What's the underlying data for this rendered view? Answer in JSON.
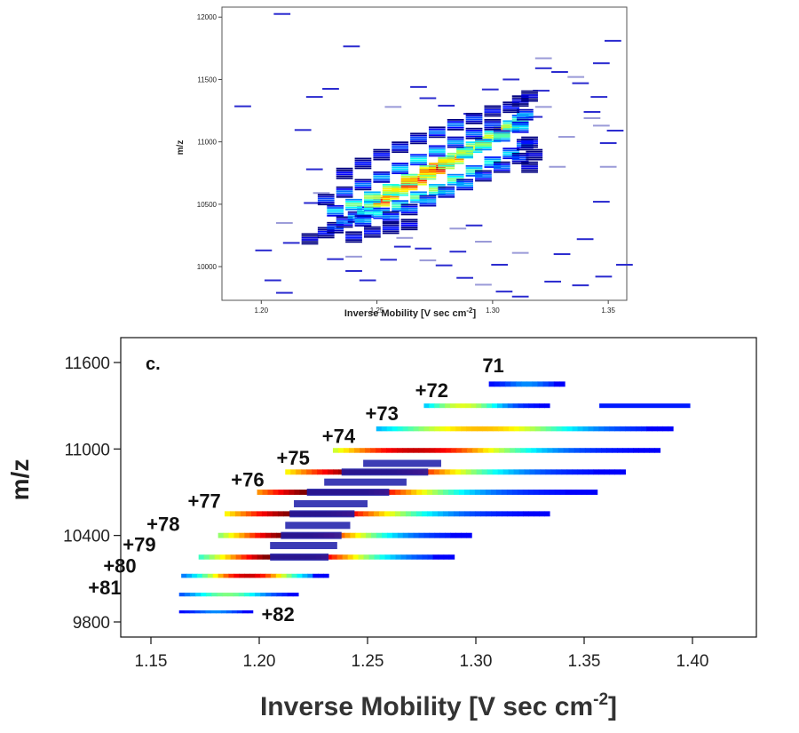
{
  "chart_data": [
    {
      "type": "heatmap",
      "title": "",
      "xlabel": "Inverse Mobility [V sec cm",
      "xlabel_sup": "-2",
      "xlabel_end": "]",
      "ylabel": "m/z",
      "xlim": [
        1.183,
        1.358
      ],
      "ylim": [
        9730,
        12080
      ],
      "xticks": [
        1.2,
        1.25,
        1.3,
        1.35
      ],
      "xtick_labels": [
        "1.20",
        "1.25",
        "1.30",
        "1.35"
      ],
      "yticks": [
        10000,
        10500,
        11000,
        11500,
        12000
      ],
      "ytick_labels": [
        "10000",
        "10500",
        "11000",
        "11500",
        "12000"
      ],
      "bin_width": 0.0072,
      "cells": [
        [
          1.221,
          10225,
          0.15
        ],
        [
          1.228,
          10275,
          0.2
        ],
        [
          1.232,
          10315,
          0.25
        ],
        [
          1.236,
          10360,
          0.3
        ],
        [
          1.241,
          10400,
          0.35
        ],
        [
          1.245,
          10440,
          0.45
        ],
        [
          1.248,
          10490,
          0.55
        ],
        [
          1.252,
          10530,
          0.9
        ],
        [
          1.256,
          10570,
          0.8
        ],
        [
          1.26,
          10615,
          0.7
        ],
        [
          1.264,
          10660,
          0.95
        ],
        [
          1.268,
          10700,
          0.9
        ],
        [
          1.272,
          10745,
          0.8
        ],
        [
          1.276,
          10790,
          1.0
        ],
        [
          1.28,
          10830,
          0.85
        ],
        [
          1.284,
          10870,
          0.8
        ],
        [
          1.288,
          10915,
          0.7
        ],
        [
          1.292,
          10960,
          0.65
        ],
        [
          1.296,
          11000,
          0.8
        ],
        [
          1.3,
          11045,
          0.65
        ],
        [
          1.304,
          11090,
          0.85
        ],
        [
          1.308,
          11130,
          0.6
        ],
        [
          1.312,
          11175,
          0.5
        ],
        [
          1.314,
          11220,
          0.35
        ],
        [
          1.232,
          10450,
          0.4
        ],
        [
          1.24,
          10500,
          0.55
        ],
        [
          1.248,
          10560,
          0.6
        ],
        [
          1.256,
          10620,
          0.7
        ],
        [
          1.264,
          10700,
          0.75
        ],
        [
          1.272,
          10770,
          0.8
        ],
        [
          1.28,
          10850,
          0.7
        ],
        [
          1.288,
          10920,
          0.6
        ],
        [
          1.296,
          10980,
          0.55
        ],
        [
          1.304,
          11050,
          0.5
        ],
        [
          1.312,
          11120,
          0.4
        ],
        [
          1.244,
          10370,
          0.35
        ],
        [
          1.252,
          10430,
          0.45
        ],
        [
          1.26,
          10490,
          0.5
        ],
        [
          1.268,
          10560,
          0.55
        ],
        [
          1.276,
          10620,
          0.6
        ],
        [
          1.284,
          10700,
          0.55
        ],
        [
          1.292,
          10770,
          0.5
        ],
        [
          1.3,
          10840,
          0.45
        ],
        [
          1.308,
          10910,
          0.4
        ],
        [
          1.314,
          10980,
          0.3
        ],
        [
          1.228,
          10540,
          0.25
        ],
        [
          1.236,
          10600,
          0.3
        ],
        [
          1.244,
          10660,
          0.3
        ],
        [
          1.252,
          10720,
          0.35
        ],
        [
          1.26,
          10790,
          0.4
        ],
        [
          1.268,
          10860,
          0.45
        ],
        [
          1.276,
          10930,
          0.4
        ],
        [
          1.284,
          11000,
          0.35
        ],
        [
          1.292,
          11070,
          0.3
        ],
        [
          1.3,
          11140,
          0.25
        ],
        [
          1.256,
          10400,
          0.3
        ],
        [
          1.264,
          10460,
          0.3
        ],
        [
          1.272,
          10530,
          0.35
        ],
        [
          1.28,
          10600,
          0.35
        ],
        [
          1.288,
          10660,
          0.35
        ],
        [
          1.296,
          10730,
          0.3
        ],
        [
          1.304,
          10800,
          0.3
        ],
        [
          1.312,
          10870,
          0.25
        ],
        [
          1.3,
          11250,
          0.2
        ],
        [
          1.308,
          11280,
          0.2
        ],
        [
          1.312,
          11330,
          0.15
        ],
        [
          1.316,
          11370,
          0.15
        ],
        [
          1.292,
          11190,
          0.25
        ],
        [
          1.284,
          11140,
          0.3
        ],
        [
          1.276,
          11080,
          0.3
        ],
        [
          1.268,
          11030,
          0.25
        ],
        [
          1.26,
          10960,
          0.25
        ],
        [
          1.252,
          10900,
          0.2
        ],
        [
          1.244,
          10830,
          0.2
        ],
        [
          1.236,
          10750,
          0.18
        ],
        [
          1.316,
          11000,
          0.2
        ],
        [
          1.318,
          10900,
          0.15
        ],
        [
          1.316,
          10800,
          0.15
        ],
        [
          1.24,
          10240,
          0.2
        ],
        [
          1.248,
          10280,
          0.2
        ],
        [
          1.256,
          10310,
          0.2
        ],
        [
          1.264,
          10340,
          0.18
        ]
      ],
      "sparse": [
        [
          1.192,
          11285
        ],
        [
          1.209,
          12025
        ],
        [
          1.239,
          11765
        ],
        [
          1.223,
          11360
        ],
        [
          1.23,
          11425
        ],
        [
          1.218,
          11095
        ],
        [
          1.201,
          10130
        ],
        [
          1.213,
          10190
        ],
        [
          1.205,
          9890
        ],
        [
          1.21,
          9790
        ],
        [
          1.232,
          10060
        ],
        [
          1.24,
          9965
        ],
        [
          1.246,
          9890
        ],
        [
          1.255,
          10055
        ],
        [
          1.262,
          10230
        ],
        [
          1.27,
          10145
        ],
        [
          1.279,
          10010
        ],
        [
          1.288,
          9910
        ],
        [
          1.296,
          9855
        ],
        [
          1.305,
          9800
        ],
        [
          1.312,
          9760
        ],
        [
          1.326,
          9880
        ],
        [
          1.338,
          9850
        ],
        [
          1.348,
          9920
        ],
        [
          1.357,
          10015
        ],
        [
          1.34,
          10220
        ],
        [
          1.347,
          10520
        ],
        [
          1.35,
          10800
        ],
        [
          1.35,
          10990
        ],
        [
          1.353,
          11090
        ],
        [
          1.343,
          11190
        ],
        [
          1.346,
          11360
        ],
        [
          1.338,
          11470
        ],
        [
          1.329,
          11560
        ],
        [
          1.347,
          11630
        ],
        [
          1.352,
          11810
        ],
        [
          1.336,
          11520
        ],
        [
          1.322,
          11670
        ],
        [
          1.322,
          11590
        ],
        [
          1.322,
          11280
        ],
        [
          1.328,
          10800
        ],
        [
          1.332,
          11040
        ],
        [
          1.321,
          11410
        ],
        [
          1.318,
          11200
        ],
        [
          1.257,
          11280
        ],
        [
          1.268,
          11440
        ],
        [
          1.272,
          11350
        ],
        [
          1.28,
          11290
        ],
        [
          1.291,
          11225
        ],
        [
          1.299,
          11420
        ],
        [
          1.308,
          11500
        ],
        [
          1.343,
          11240
        ],
        [
          1.347,
          11130
        ],
        [
          1.226,
          10590
        ],
        [
          1.223,
          10780
        ],
        [
          1.24,
          10080
        ],
        [
          1.261,
          10160
        ],
        [
          1.272,
          10050
        ],
        [
          1.285,
          10120
        ],
        [
          1.296,
          10200
        ],
        [
          1.303,
          10015
        ],
        [
          1.312,
          10110
        ],
        [
          1.33,
          10100
        ],
        [
          1.285,
          10305
        ],
        [
          1.292,
          10330
        ],
        [
          1.21,
          10350
        ],
        [
          1.222,
          10510
        ]
      ]
    },
    {
      "type": "heatmap",
      "panel_label": "c.",
      "title": "",
      "xlabel": "Inverse Mobility [V sec cm",
      "xlabel_sup": "-2",
      "xlabel_end": "]",
      "ylabel": "m/z",
      "xlim": [
        1.135,
        1.425
      ],
      "ylim": [
        9760,
        11720
      ],
      "xticks": [
        1.15,
        1.2,
        1.25,
        1.3,
        1.35,
        1.4
      ],
      "xtick_labels": [
        "1.15",
        "1.20",
        "1.25",
        "1.30",
        "1.35",
        "1.40"
      ],
      "yticks": [
        9800,
        10400,
        11000,
        11600
      ],
      "ytick_labels": [
        "9800",
        "10400",
        "11000",
        "11600"
      ],
      "series": [
        {
          "name": "71",
          "label_at": [
            1.303,
            11580
          ],
          "x0": 1.306,
          "x1": 1.341,
          "y": 11450,
          "row_height": 14,
          "peak_at": 0.5,
          "peak_intensity": 0.15
        },
        {
          "name": "+72",
          "label_at": [
            1.272,
            11410
          ],
          "x0": 1.276,
          "x1": 1.334,
          "y": 11300,
          "row_height": 12,
          "peak_at": 0.3,
          "peak_intensity": 0.5,
          "extra": [
            [
              1.357,
              1.399,
              0.15
            ]
          ]
        },
        {
          "name": "+73",
          "label_at": [
            1.249,
            11250
          ],
          "x0": 1.254,
          "x1": 1.391,
          "y": 11140,
          "row_height": 13,
          "peak_at": 0.35,
          "peak_intensity": 0.6
        },
        {
          "name": "+74",
          "label_at": [
            1.229,
            11090
          ],
          "x0": 1.234,
          "x1": 1.385,
          "y": 10990,
          "row_height": 13,
          "peak_at": 0.25,
          "peak_intensity": 0.85
        },
        {
          "name": "+75",
          "label_at": [
            1.208,
            10940
          ],
          "x0": 1.212,
          "x1": 1.369,
          "y": 10840,
          "row_height": 14,
          "peak_at": 0.25,
          "peak_intensity": 0.95
        },
        {
          "name": "+76",
          "label_at": [
            1.187,
            10790
          ],
          "x0": 1.199,
          "x1": 1.356,
          "y": 10700,
          "row_height": 14,
          "peak_at": 0.22,
          "peak_intensity": 1.0
        },
        {
          "name": "+77",
          "label_at": [
            1.167,
            10640
          ],
          "x0": 1.184,
          "x1": 1.334,
          "y": 10550,
          "row_height": 14,
          "peak_at": 0.25,
          "peak_intensity": 0.95
        },
        {
          "name": "+78",
          "label_at": [
            1.148,
            10480
          ],
          "x0": 1.181,
          "x1": 1.298,
          "y": 10400,
          "row_height": 14,
          "peak_at": 0.3,
          "peak_intensity": 0.95
        },
        {
          "name": "+79",
          "label_at": [
            1.137,
            10340
          ],
          "x0": 1.172,
          "x1": 1.29,
          "y": 10250,
          "row_height": 13,
          "peak_at": 0.35,
          "peak_intensity": 1.0
        },
        {
          "name": "+80",
          "label_at": [
            1.128,
            10190
          ],
          "x0": 1.164,
          "x1": 1.232,
          "y": 10120,
          "row_height": 11,
          "peak_at": 0.45,
          "peak_intensity": 0.85
        },
        {
          "name": "+81",
          "label_at": [
            1.121,
            10040
          ],
          "x0": 1.163,
          "x1": 1.218,
          "y": 9990,
          "row_height": 10,
          "peak_at": 0.4,
          "peak_intensity": 0.4
        },
        {
          "name": "+82",
          "label_at": [
            1.201,
            9855
          ],
          "x0": 1.163,
          "x1": 1.197,
          "y": 9870,
          "row_height": 8,
          "peak_at": 0.5,
          "peak_intensity": 0.15
        }
      ],
      "dark_core": [
        [
          1.205,
          1.232,
          10250
        ],
        [
          1.205,
          1.236,
          10330
        ],
        [
          1.21,
          1.238,
          10400
        ],
        [
          1.212,
          1.242,
          10470
        ],
        [
          1.214,
          1.244,
          10550
        ],
        [
          1.216,
          1.25,
          10620
        ],
        [
          1.222,
          1.26,
          10700
        ],
        [
          1.23,
          1.268,
          10770
        ],
        [
          1.238,
          1.278,
          10840
        ],
        [
          1.248,
          1.284,
          10900
        ]
      ]
    }
  ]
}
